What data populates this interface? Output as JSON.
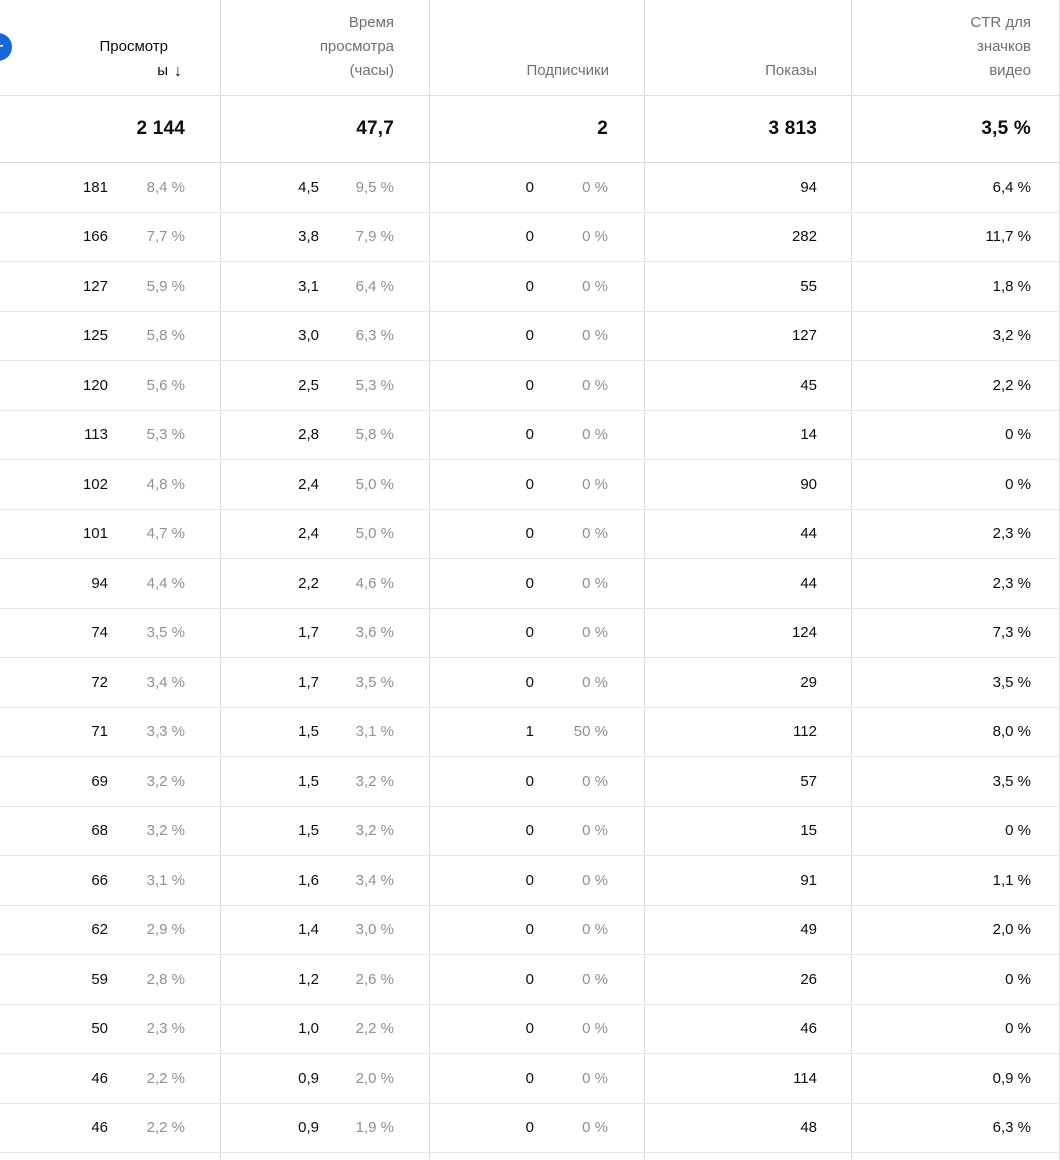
{
  "add_button": {
    "glyph": "+",
    "color": "#1967d2"
  },
  "sort": {
    "column": "views",
    "direction": "descending",
    "glyph": "↓"
  },
  "columns": {
    "views": {
      "label": "Просмотры",
      "display": "Просмотр\nы"
    },
    "watch_time": {
      "label": "Время просмотра (часы)",
      "display": "Время\nпросмотра\n(часы)"
    },
    "subscribers": {
      "label": "Подписчики",
      "display": "Подписчики"
    },
    "impressions": {
      "label": "Показы",
      "display": "Показы"
    },
    "ctr": {
      "label": "CTR для значков видео",
      "display": "CTR для\nзначков\nвидео"
    }
  },
  "totals": {
    "views": "2 144",
    "watch_time": "47,7",
    "subscribers": "2",
    "impressions": "3 813",
    "ctr": "3,5 %"
  },
  "rows": [
    {
      "views": "181",
      "views_pct": "8,4 %",
      "watch_time": "4,5",
      "watch_time_pct": "9,5 %",
      "subscribers": "0",
      "subscribers_pct": "0 %",
      "impressions": "94",
      "ctr": "6,4 %"
    },
    {
      "views": "166",
      "views_pct": "7,7 %",
      "watch_time": "3,8",
      "watch_time_pct": "7,9 %",
      "subscribers": "0",
      "subscribers_pct": "0 %",
      "impressions": "282",
      "ctr": "11,7 %"
    },
    {
      "views": "127",
      "views_pct": "5,9 %",
      "watch_time": "3,1",
      "watch_time_pct": "6,4 %",
      "subscribers": "0",
      "subscribers_pct": "0 %",
      "impressions": "55",
      "ctr": "1,8 %"
    },
    {
      "views": "125",
      "views_pct": "5,8 %",
      "watch_time": "3,0",
      "watch_time_pct": "6,3 %",
      "subscribers": "0",
      "subscribers_pct": "0 %",
      "impressions": "127",
      "ctr": "3,2 %"
    },
    {
      "views": "120",
      "views_pct": "5,6 %",
      "watch_time": "2,5",
      "watch_time_pct": "5,3 %",
      "subscribers": "0",
      "subscribers_pct": "0 %",
      "impressions": "45",
      "ctr": "2,2 %"
    },
    {
      "views": "113",
      "views_pct": "5,3 %",
      "watch_time": "2,8",
      "watch_time_pct": "5,8 %",
      "subscribers": "0",
      "subscribers_pct": "0 %",
      "impressions": "14",
      "ctr": "0 %"
    },
    {
      "views": "102",
      "views_pct": "4,8 %",
      "watch_time": "2,4",
      "watch_time_pct": "5,0 %",
      "subscribers": "0",
      "subscribers_pct": "0 %",
      "impressions": "90",
      "ctr": "0 %"
    },
    {
      "views": "101",
      "views_pct": "4,7 %",
      "watch_time": "2,4",
      "watch_time_pct": "5,0 %",
      "subscribers": "0",
      "subscribers_pct": "0 %",
      "impressions": "44",
      "ctr": "2,3 %"
    },
    {
      "views": "94",
      "views_pct": "4,4 %",
      "watch_time": "2,2",
      "watch_time_pct": "4,6 %",
      "subscribers": "0",
      "subscribers_pct": "0 %",
      "impressions": "44",
      "ctr": "2,3 %"
    },
    {
      "views": "74",
      "views_pct": "3,5 %",
      "watch_time": "1,7",
      "watch_time_pct": "3,6 %",
      "subscribers": "0",
      "subscribers_pct": "0 %",
      "impressions": "124",
      "ctr": "7,3 %"
    },
    {
      "views": "72",
      "views_pct": "3,4 %",
      "watch_time": "1,7",
      "watch_time_pct": "3,5 %",
      "subscribers": "0",
      "subscribers_pct": "0 %",
      "impressions": "29",
      "ctr": "3,5 %"
    },
    {
      "views": "71",
      "views_pct": "3,3 %",
      "watch_time": "1,5",
      "watch_time_pct": "3,1 %",
      "subscribers": "1",
      "subscribers_pct": "50 %",
      "impressions": "112",
      "ctr": "8,0 %"
    },
    {
      "views": "69",
      "views_pct": "3,2 %",
      "watch_time": "1,5",
      "watch_time_pct": "3,2 %",
      "subscribers": "0",
      "subscribers_pct": "0 %",
      "impressions": "57",
      "ctr": "3,5 %"
    },
    {
      "views": "68",
      "views_pct": "3,2 %",
      "watch_time": "1,5",
      "watch_time_pct": "3,2 %",
      "subscribers": "0",
      "subscribers_pct": "0 %",
      "impressions": "15",
      "ctr": "0 %"
    },
    {
      "views": "66",
      "views_pct": "3,1 %",
      "watch_time": "1,6",
      "watch_time_pct": "3,4 %",
      "subscribers": "0",
      "subscribers_pct": "0 %",
      "impressions": "91",
      "ctr": "1,1 %"
    },
    {
      "views": "62",
      "views_pct": "2,9 %",
      "watch_time": "1,4",
      "watch_time_pct": "3,0 %",
      "subscribers": "0",
      "subscribers_pct": "0 %",
      "impressions": "49",
      "ctr": "2,0 %"
    },
    {
      "views": "59",
      "views_pct": "2,8 %",
      "watch_time": "1,2",
      "watch_time_pct": "2,6 %",
      "subscribers": "0",
      "subscribers_pct": "0 %",
      "impressions": "26",
      "ctr": "0 %"
    },
    {
      "views": "50",
      "views_pct": "2,3 %",
      "watch_time": "1,0",
      "watch_time_pct": "2,2 %",
      "subscribers": "0",
      "subscribers_pct": "0 %",
      "impressions": "46",
      "ctr": "0 %"
    },
    {
      "views": "46",
      "views_pct": "2,2 %",
      "watch_time": "0,9",
      "watch_time_pct": "2,0 %",
      "subscribers": "0",
      "subscribers_pct": "0 %",
      "impressions": "114",
      "ctr": "0,9 %"
    },
    {
      "views": "46",
      "views_pct": "2,2 %",
      "watch_time": "0,9",
      "watch_time_pct": "1,9 %",
      "subscribers": "0",
      "subscribers_pct": "0 %",
      "impressions": "48",
      "ctr": "6,3 %"
    }
  ],
  "colors": {
    "add_button_blue": "#1967d2",
    "primary_text": "#0d0d0d",
    "secondary_text": "#909090",
    "header_text": "#707070",
    "column_border": "#dcdcdc",
    "row_border": "#e8e8e8"
  }
}
